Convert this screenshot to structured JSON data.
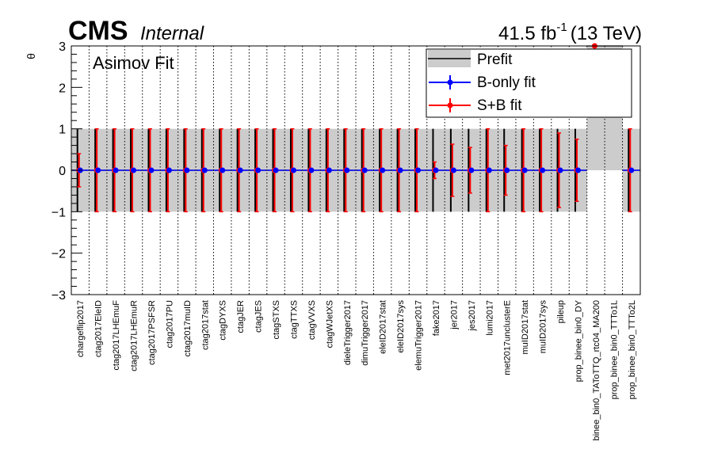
{
  "header": {
    "experiment": "CMS",
    "status": "Internal",
    "lumi": "41.5 fb",
    "lumi_exp": "-1",
    "energy": "(13 TeV)"
  },
  "chart_data": {
    "type": "scatter",
    "annotation": "Asimov Fit",
    "ylabel": "θ",
    "ylim": [
      -3,
      3
    ],
    "yticks": [
      "3",
      "2",
      "1",
      "0",
      "−1",
      "−2",
      "−3"
    ],
    "grid": "vertical dotted separators between nuisance parameters",
    "legend": {
      "placement": "top-right",
      "entries": [
        "Prefit",
        "B-only fit",
        "S+B fit"
      ]
    },
    "colors": {
      "prefit": "#cccccc",
      "bonly": "#0000ff",
      "spb": "#ff0000"
    },
    "categories": [
      "chargeflip2017",
      "ctag2017EleID",
      "ctag2017LHEmuF",
      "ctag2017LHEmuR",
      "ctag2017PSFSR",
      "ctag2017PU",
      "ctag2017muID",
      "ctag2017stat",
      "ctagDYXS",
      "ctagJER",
      "ctagJES",
      "ctagSTXS",
      "ctagTTXS",
      "ctagVVXS",
      "ctagWJetXS",
      "dieleTrigger2017",
      "dimuTrigger2017",
      "eleID2017stat",
      "eleID2017sys",
      "elemuTrigger2017",
      "fake2017",
      "jer2017",
      "jes2017",
      "lumi2017",
      "met2017unclusterE",
      "muID2017stat",
      "muID2017sys",
      "pileup",
      "prop_binee_bin0_DY",
      "binee_bin0_TAToTTQ_rtc04_MA200",
      "prop_binee_bin0_TTTo1L",
      "prop_binee_bin0_TTTo2L"
    ],
    "prefit": [
      {
        "center": 0,
        "width": 1
      },
      {
        "center": 0,
        "width": 1
      },
      {
        "center": 0,
        "width": 1
      },
      {
        "center": 0,
        "width": 1
      },
      {
        "center": 0,
        "width": 1
      },
      {
        "center": 0,
        "width": 1
      },
      {
        "center": 0,
        "width": 1
      },
      {
        "center": 0,
        "width": 1
      },
      {
        "center": 0,
        "width": 1
      },
      {
        "center": 0,
        "width": 1
      },
      {
        "center": 0,
        "width": 1
      },
      {
        "center": 0,
        "width": 1
      },
      {
        "center": 0,
        "width": 1
      },
      {
        "center": 0,
        "width": 1
      },
      {
        "center": 0,
        "width": 1
      },
      {
        "center": 0,
        "width": 1
      },
      {
        "center": 0,
        "width": 1
      },
      {
        "center": 0,
        "width": 1
      },
      {
        "center": 0,
        "width": 1
      },
      {
        "center": 0,
        "width": 1
      },
      {
        "center": 0,
        "width": 1
      },
      {
        "center": 0,
        "width": 1
      },
      {
        "center": 0,
        "width": 1
      },
      {
        "center": 0,
        "width": 1
      },
      {
        "center": 0,
        "width": 1
      },
      {
        "center": 0,
        "width": 1
      },
      {
        "center": 0,
        "width": 1
      },
      {
        "center": 0,
        "width": 1
      },
      {
        "center": 0,
        "width": 1
      },
      {
        "center": 3,
        "width": 3
      },
      {
        "center": 3,
        "width": 3
      },
      {
        "center": 0,
        "width": 1
      }
    ],
    "series": [
      {
        "name": "B-only fit",
        "values": [
          0,
          0,
          0,
          0,
          0,
          0,
          0,
          0,
          0,
          0,
          0,
          0,
          0,
          0,
          0,
          0,
          0,
          0,
          0,
          0,
          0,
          0,
          0,
          0,
          0,
          0,
          0,
          0,
          0,
          null,
          null,
          0
        ],
        "errors": [
          1,
          1,
          1,
          1,
          1,
          1,
          1,
          1,
          1,
          1,
          1,
          1,
          1,
          1,
          1,
          1,
          1,
          1,
          1,
          1,
          1,
          1,
          1,
          1,
          1,
          1,
          1,
          1,
          1,
          null,
          null,
          1
        ]
      },
      {
        "name": "S+B fit",
        "values": [
          0,
          0,
          0,
          0,
          0,
          0,
          0,
          0,
          0,
          0,
          0,
          0,
          0,
          0,
          0,
          0,
          0,
          0,
          0,
          0,
          0,
          0,
          0,
          0,
          0,
          0,
          0,
          0,
          0,
          3,
          null,
          0
        ],
        "errors": [
          0.4,
          1,
          1,
          1,
          1,
          1,
          1,
          1,
          1,
          1,
          1,
          1,
          1,
          1,
          1,
          1,
          1,
          1,
          1,
          1,
          0.2,
          0.63,
          0.55,
          1,
          0.6,
          1,
          1,
          0.9,
          0.75,
          0,
          null,
          1
        ]
      }
    ]
  }
}
